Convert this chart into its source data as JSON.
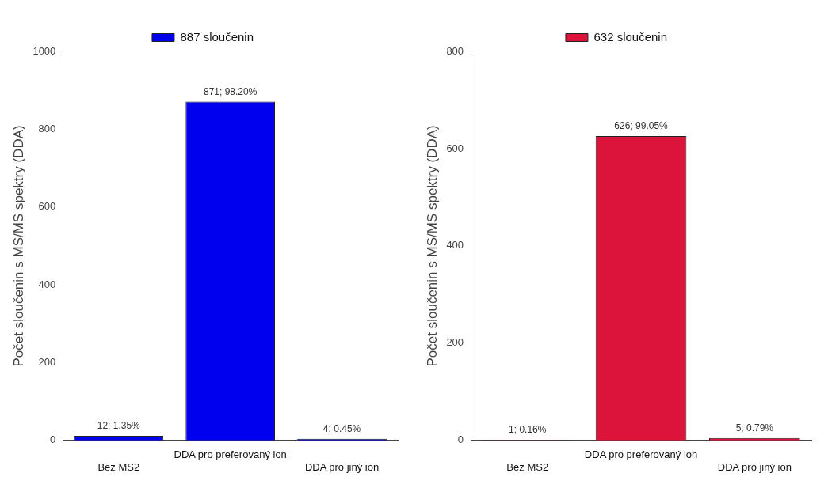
{
  "chart_data": [
    {
      "type": "bar",
      "categories": [
        "Bez MS2",
        "DDA pro preferovaný ion",
        "DDA pro jiný ion"
      ],
      "ylabel": "Počet sloučenin s MS/MS spektry (DDA)",
      "ylim": [
        0,
        1000
      ],
      "yticks": [
        0,
        200,
        400,
        600,
        800,
        1000
      ],
      "legend": "top",
      "grid": false,
      "series": [
        {
          "name": "887 sloučenin",
          "color": "#0000ee",
          "values": [
            12,
            871,
            4
          ],
          "value_labels": [
            "12; 1.35%",
            "871; 98.20%",
            "4; 0.45%"
          ]
        }
      ]
    },
    {
      "type": "bar",
      "categories": [
        "Bez MS2",
        "DDA pro preferovaný ion",
        "DDA pro jiný ion"
      ],
      "ylabel": "Počet sloučenin s MS/MS spektry (DDA)",
      "ylim": [
        0,
        800
      ],
      "yticks": [
        0,
        200,
        400,
        600,
        800
      ],
      "legend": "top",
      "grid": false,
      "series": [
        {
          "name": "632 sloučenin",
          "color": "#dc143c",
          "values": [
            1,
            626,
            5
          ],
          "value_labels": [
            "1; 0.16%",
            "626; 99.05%",
            "5; 0.79%"
          ]
        }
      ]
    }
  ]
}
